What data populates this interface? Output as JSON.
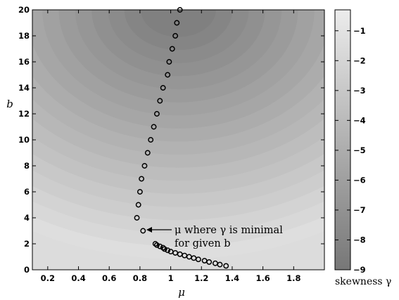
{
  "chart_data": {
    "type": "heatmap",
    "xlabel": "μ",
    "ylabel": "b",
    "xlim": [
      0.1,
      2.0
    ],
    "ylim": [
      0,
      20
    ],
    "x_ticks": [
      "0.2",
      "0.4",
      "0.6",
      "0.8",
      "1",
      "1.2",
      "1.4",
      "1.6",
      "1.8"
    ],
    "y_ticks": [
      "0",
      "2",
      "4",
      "6",
      "8",
      "10",
      "12",
      "14",
      "16",
      "18",
      "20"
    ],
    "colorbar": {
      "label": "skewness γ",
      "range": [
        -9,
        -0.3
      ],
      "ticks": [
        "−1",
        "−2",
        "−3",
        "−4",
        "−5",
        "−6",
        "−7",
        "−8",
        "−9"
      ],
      "colormap": "grayscale (dark = low)"
    },
    "field_description": "skewness surface darkest near μ≈1.05, b≈20; lighter toward low b and high μ",
    "series": [
      {
        "type": "scatter",
        "marker": "open circle",
        "points": [
          {
            "x": 1.06,
            "y": 20
          },
          {
            "x": 1.04,
            "y": 19
          },
          {
            "x": 1.03,
            "y": 18
          },
          {
            "x": 1.01,
            "y": 17
          },
          {
            "x": 0.99,
            "y": 16
          },
          {
            "x": 0.98,
            "y": 15
          },
          {
            "x": 0.95,
            "y": 14
          },
          {
            "x": 0.93,
            "y": 13
          },
          {
            "x": 0.91,
            "y": 12
          },
          {
            "x": 0.89,
            "y": 11
          },
          {
            "x": 0.87,
            "y": 10
          },
          {
            "x": 0.85,
            "y": 9
          },
          {
            "x": 0.83,
            "y": 8
          },
          {
            "x": 0.81,
            "y": 7
          },
          {
            "x": 0.8,
            "y": 6
          },
          {
            "x": 0.79,
            "y": 5
          },
          {
            "x": 0.78,
            "y": 4
          },
          {
            "x": 0.82,
            "y": 3
          },
          {
            "x": 0.9,
            "y": 2.0
          },
          {
            "x": 0.91,
            "y": 1.9
          },
          {
            "x": 0.93,
            "y": 1.8
          },
          {
            "x": 0.95,
            "y": 1.7
          },
          {
            "x": 0.96,
            "y": 1.6
          },
          {
            "x": 0.98,
            "y": 1.5
          },
          {
            "x": 1.0,
            "y": 1.4
          },
          {
            "x": 1.03,
            "y": 1.3
          },
          {
            "x": 1.06,
            "y": 1.2
          },
          {
            "x": 1.09,
            "y": 1.1
          },
          {
            "x": 1.12,
            "y": 1.0
          },
          {
            "x": 1.15,
            "y": 0.9
          },
          {
            "x": 1.18,
            "y": 0.8
          },
          {
            "x": 1.22,
            "y": 0.7
          },
          {
            "x": 1.25,
            "y": 0.6
          },
          {
            "x": 1.29,
            "y": 0.5
          },
          {
            "x": 1.32,
            "y": 0.4
          },
          {
            "x": 1.36,
            "y": 0.3
          }
        ]
      }
    ],
    "annotation": {
      "line1": "μ where γ is minimal",
      "line2": "for given b",
      "points_to": {
        "x": 0.82,
        "y": 3
      }
    }
  }
}
